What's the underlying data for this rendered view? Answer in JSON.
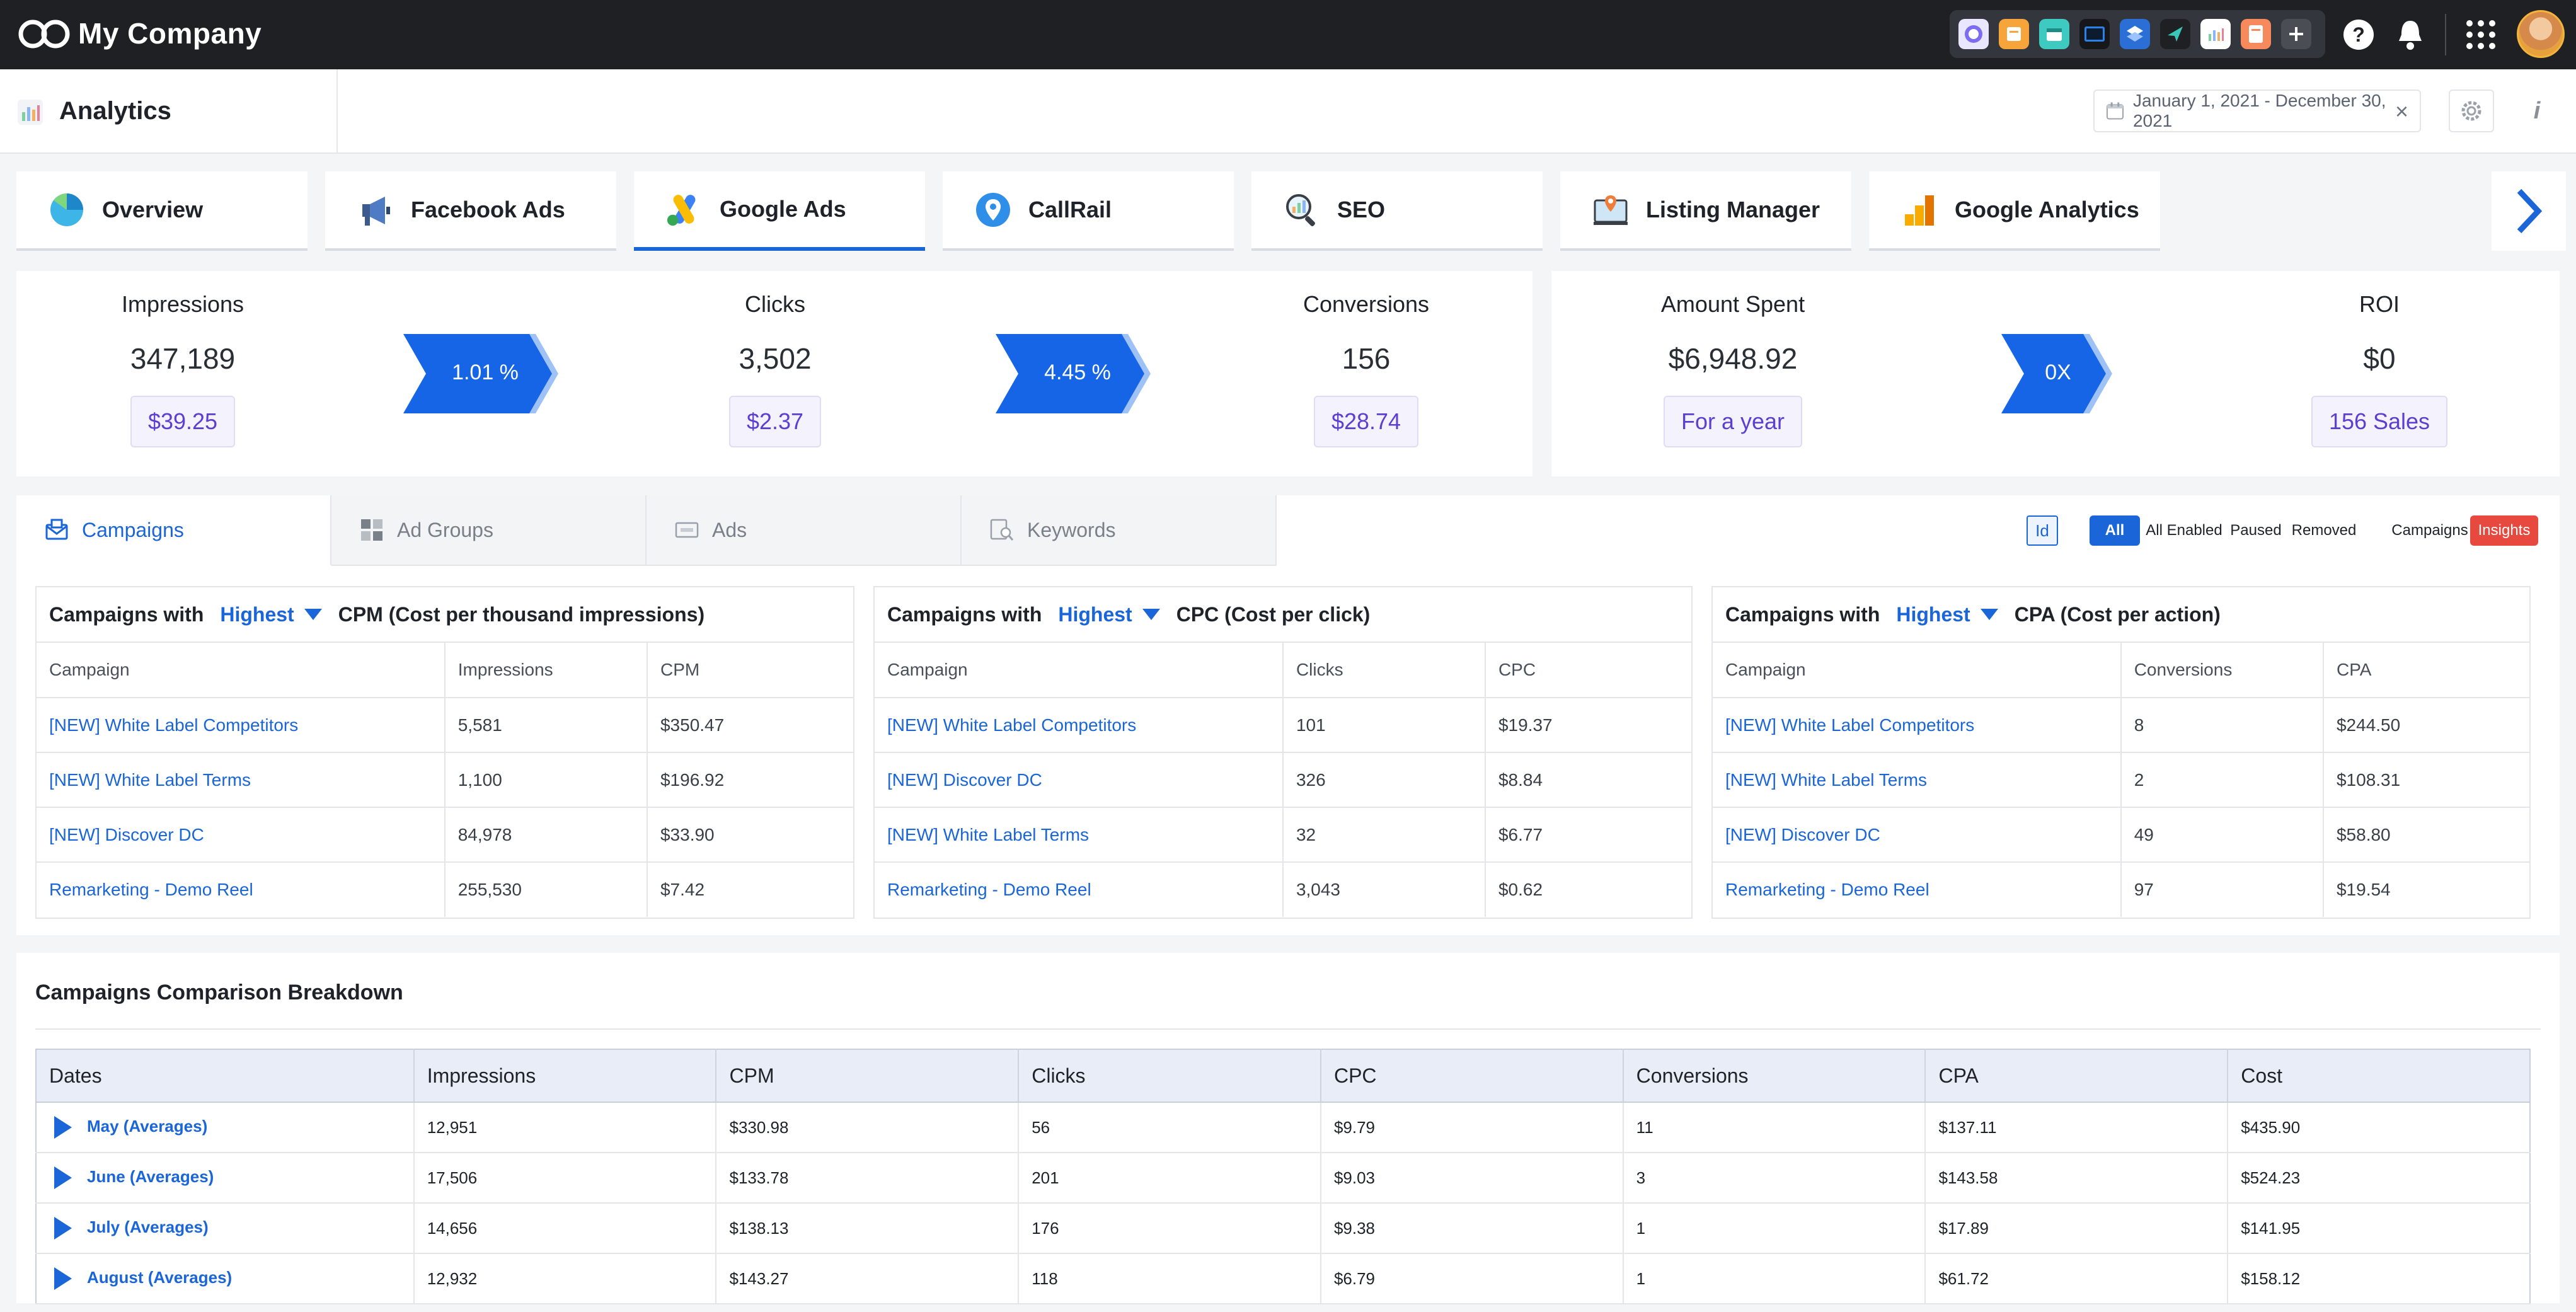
{
  "header": {
    "company_name": "My Company",
    "tray_apps": [
      "contacts-icon",
      "notes-icon",
      "calendar-icon",
      "mail-icon",
      "layers-icon",
      "plane-icon",
      "analytics-icon",
      "docs-icon",
      "add-icon"
    ],
    "help_icon": "?",
    "notifications_icon": "bell-icon",
    "apps_icon": "grid-icon"
  },
  "subheader": {
    "title": "Analytics",
    "date_range": "January 1, 2021 - December 30, 2021",
    "clear_icon": "×",
    "info_icon": "i"
  },
  "source_tabs": [
    {
      "label": "Overview"
    },
    {
      "label": "Facebook Ads"
    },
    {
      "label": "Google Ads"
    },
    {
      "label": "CallRail"
    },
    {
      "label": "SEO"
    },
    {
      "label": "Listing Manager"
    },
    {
      "label": "Google Analytics"
    }
  ],
  "next_arrow": "❯",
  "funnel": {
    "impressions": {
      "label": "Impressions",
      "value": "347,189",
      "chip": "$39.25"
    },
    "ctr": "1.01 %",
    "clicks": {
      "label": "Clicks",
      "value": "3,502",
      "chip": "$2.37"
    },
    "conv_rate": "4.45 %",
    "conversions": {
      "label": "Conversions",
      "value": "156",
      "chip": "$28.74"
    }
  },
  "spend": {
    "amount": {
      "label": "Amount Spent",
      "value": "$6,948.92",
      "chip": "For a year"
    },
    "multiplier": "0X",
    "roi": {
      "label": "ROI",
      "value": "$0",
      "chip": "156 Sales"
    }
  },
  "sub_tabs": [
    {
      "label": "Campaigns"
    },
    {
      "label": "Ad Groups"
    },
    {
      "label": "Ads"
    },
    {
      "label": "Keywords"
    }
  ],
  "filters": {
    "id_label": "Id",
    "status": [
      "All",
      "All Enabled",
      "Paused",
      "Removed"
    ],
    "view": [
      "Campaigns",
      "Insights"
    ]
  },
  "mini_tables": [
    {
      "prefix": "Campaigns with",
      "selector": "Highest",
      "metric": "CPM (Cost per thousand impressions)",
      "columns": [
        "Campaign",
        "Impressions",
        "CPM"
      ],
      "rows": [
        [
          "[NEW] White Label Competitors",
          "5,581",
          "$350.47"
        ],
        [
          "[NEW] White Label Terms",
          "1,100",
          "$196.92"
        ],
        [
          "[NEW] Discover DC",
          "84,978",
          "$33.90"
        ],
        [
          "Remarketing - Demo Reel",
          "255,530",
          "$7.42"
        ]
      ]
    },
    {
      "prefix": "Campaigns with",
      "selector": "Highest",
      "metric": "CPC (Cost per click)",
      "columns": [
        "Campaign",
        "Clicks",
        "CPC"
      ],
      "rows": [
        [
          "[NEW] White Label Competitors",
          "101",
          "$19.37"
        ],
        [
          "[NEW] Discover DC",
          "326",
          "$8.84"
        ],
        [
          "[NEW] White Label Terms",
          "32",
          "$6.77"
        ],
        [
          "Remarketing - Demo Reel",
          "3,043",
          "$0.62"
        ]
      ]
    },
    {
      "prefix": "Campaigns with",
      "selector": "Highest",
      "metric": "CPA (Cost per action)",
      "columns": [
        "Campaign",
        "Conversions",
        "CPA"
      ],
      "rows": [
        [
          "[NEW] White Label Competitors",
          "8",
          "$244.50"
        ],
        [
          "[NEW] White Label Terms",
          "2",
          "$108.31"
        ],
        [
          "[NEW] Discover DC",
          "49",
          "$58.80"
        ],
        [
          "Remarketing - Demo Reel",
          "97",
          "$19.54"
        ]
      ]
    }
  ],
  "breakdown": {
    "title": "Campaigns Comparison Breakdown",
    "columns": [
      "Dates",
      "Impressions",
      "CPM",
      "Clicks",
      "CPC",
      "Conversions",
      "CPA",
      "Cost"
    ],
    "rows": [
      [
        "May (Averages)",
        "12,951",
        "$330.98",
        "56",
        "$9.79",
        "11",
        "$137.11",
        "$435.90"
      ],
      [
        "June (Averages)",
        "17,506",
        "$133.78",
        "201",
        "$9.03",
        "3",
        "$143.58",
        "$524.23"
      ],
      [
        "July (Averages)",
        "14,656",
        "$138.13",
        "176",
        "$9.38",
        "1",
        "$17.89",
        "$141.95"
      ],
      [
        "August (Averages)",
        "12,932",
        "$143.27",
        "118",
        "$6.79",
        "1",
        "$61.72",
        "$158.12"
      ]
    ]
  },
  "colors": {
    "accent": "#1a66d9",
    "topbar": "#1e2024",
    "chip_text": "#5b3fd1",
    "insights": "#e8493f"
  }
}
